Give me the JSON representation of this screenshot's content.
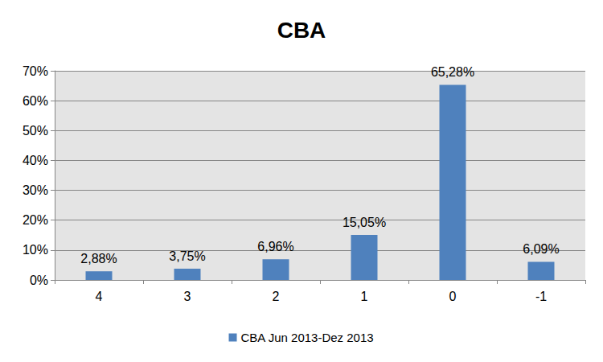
{
  "chart_data": {
    "type": "bar",
    "title": "CBA",
    "categories": [
      "4",
      "3",
      "2",
      "1",
      "0",
      "-1"
    ],
    "series": [
      {
        "name": "CBA Jun 2013-Dez 2013",
        "color": "#4f81bd",
        "values": [
          2.88,
          3.75,
          6.96,
          15.05,
          65.28,
          6.09
        ],
        "value_labels": [
          "2,88%",
          "3,75%",
          "6,96%",
          "15,05%",
          "65,28%",
          "6,09%"
        ]
      }
    ],
    "ylim": [
      0,
      70
    ],
    "yticks": [
      {
        "value": 0,
        "label": "0%"
      },
      {
        "value": 10,
        "label": "10%"
      },
      {
        "value": 20,
        "label": "20%"
      },
      {
        "value": 30,
        "label": "30%"
      },
      {
        "value": 40,
        "label": "40%"
      },
      {
        "value": 50,
        "label": "50%"
      },
      {
        "value": 60,
        "label": "60%"
      },
      {
        "value": 70,
        "label": "70%"
      }
    ],
    "grid": true,
    "legend": "bottom",
    "data_labels": true
  }
}
